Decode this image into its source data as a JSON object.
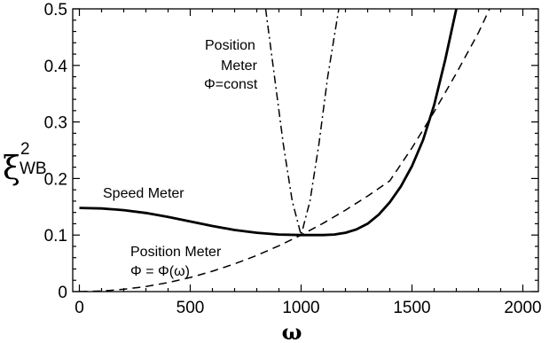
{
  "chart_data": {
    "type": "line",
    "title": "",
    "xlabel": "ω",
    "ylabel": {
      "base": "ξ",
      "sup": "2",
      "sub": "WB"
    },
    "xlim": [
      -30,
      2070
    ],
    "ylim": [
      0,
      0.5
    ],
    "xticks": [
      0,
      500,
      1000,
      1500,
      2000
    ],
    "yticks": [
      0,
      0.1,
      0.2,
      0.3,
      0.4,
      0.5
    ],
    "grid": false,
    "series": [
      {
        "id": "speed-meter",
        "style": "solid",
        "points": [
          [
            0,
            0.148
          ],
          [
            100,
            0.147
          ],
          [
            200,
            0.144
          ],
          [
            300,
            0.139
          ],
          [
            400,
            0.132
          ],
          [
            500,
            0.124
          ],
          [
            600,
            0.116
          ],
          [
            700,
            0.109
          ],
          [
            800,
            0.104
          ],
          [
            900,
            0.101
          ],
          [
            1000,
            0.1
          ],
          [
            1100,
            0.1
          ],
          [
            1150,
            0.101
          ],
          [
            1200,
            0.104
          ],
          [
            1250,
            0.11
          ],
          [
            1300,
            0.12
          ],
          [
            1350,
            0.136
          ],
          [
            1400,
            0.158
          ],
          [
            1450,
            0.186
          ],
          [
            1500,
            0.222
          ],
          [
            1550,
            0.268
          ],
          [
            1600,
            0.33
          ],
          [
            1650,
            0.41
          ],
          [
            1700,
            0.5
          ]
        ]
      },
      {
        "id": "position-meter-phi-omega",
        "style": "dashed",
        "points": [
          [
            0,
            0.0
          ],
          [
            100,
            0.001
          ],
          [
            200,
            0.004
          ],
          [
            300,
            0.009
          ],
          [
            400,
            0.016
          ],
          [
            500,
            0.025
          ],
          [
            600,
            0.036
          ],
          [
            700,
            0.049
          ],
          [
            800,
            0.064
          ],
          [
            900,
            0.081
          ],
          [
            1000,
            0.1
          ],
          [
            1100,
            0.121
          ],
          [
            1200,
            0.144
          ],
          [
            1300,
            0.169
          ],
          [
            1400,
            0.196
          ],
          [
            1500,
            0.254
          ],
          [
            1600,
            0.318
          ],
          [
            1700,
            0.386
          ],
          [
            1800,
            0.458
          ],
          [
            1850,
            0.5
          ]
        ]
      },
      {
        "id": "position-meter-phi-const",
        "style": "dashdot",
        "points": [
          [
            840,
            0.5
          ],
          [
            880,
            0.38
          ],
          [
            920,
            0.26
          ],
          [
            960,
            0.16
          ],
          [
            1000,
            0.1
          ],
          [
            1040,
            0.16
          ],
          [
            1080,
            0.26
          ],
          [
            1120,
            0.38
          ],
          [
            1170,
            0.5
          ]
        ]
      }
    ],
    "annotations": {
      "speed_meter": "Speed Meter",
      "pos_const_line1": "Position",
      "pos_const_line2": "Meter",
      "pos_const_phi": "Φ=const",
      "pos_omega_line1": "Position Meter",
      "pos_omega_phi": "Φ = Φ(ω)"
    }
  }
}
